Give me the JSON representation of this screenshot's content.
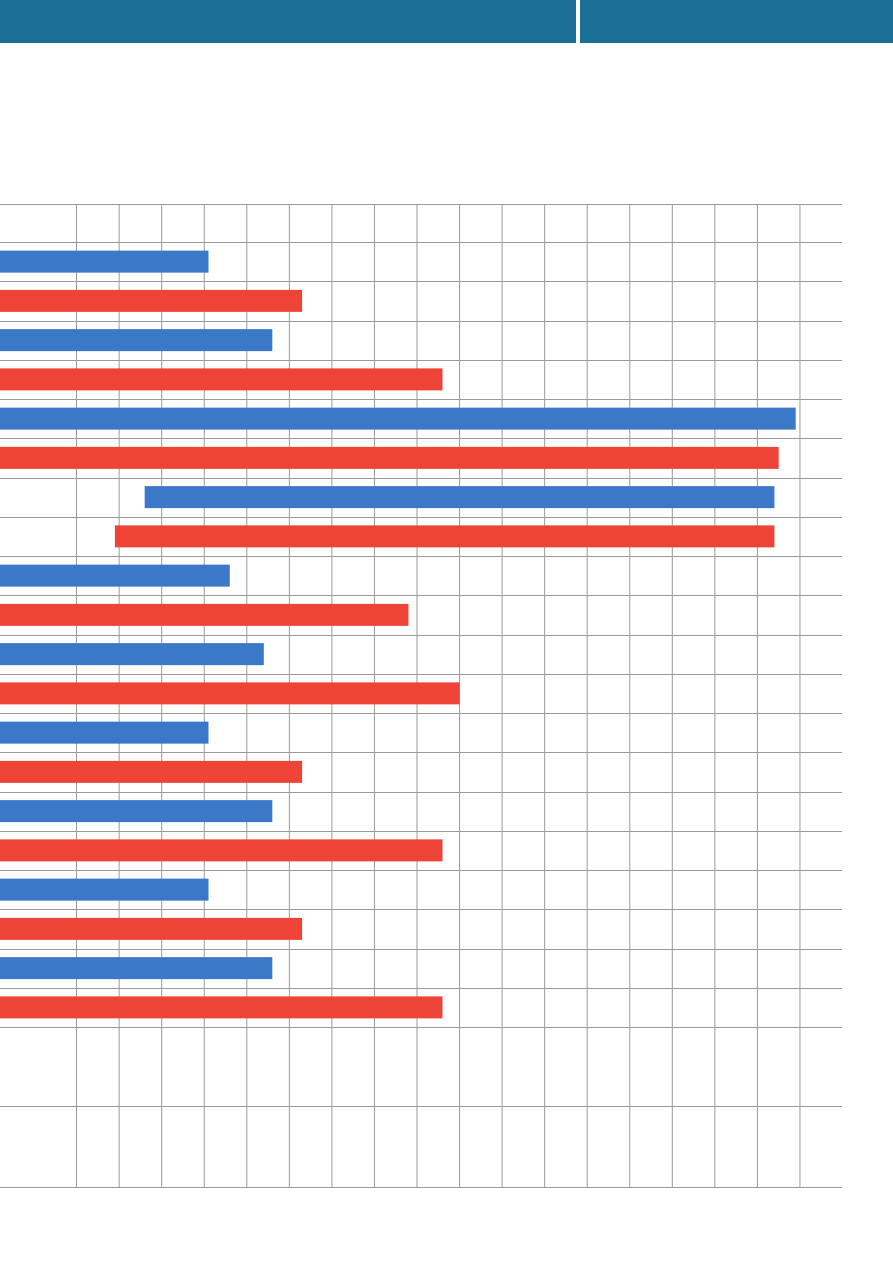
{
  "colors": {
    "header": "#1b6e96",
    "blue": "#3c78c8",
    "red": "#ee4438",
    "grid": "#9a9a9a"
  },
  "chart_data": {
    "type": "bar",
    "orientation": "horizontal-floating",
    "title": "",
    "xlabel": "",
    "ylabel": "",
    "xlim": [
      0,
      20
    ],
    "grid": true,
    "legend": "none",
    "categories": [
      "",
      "",
      "",
      "",
      "",
      "",
      "",
      "",
      "",
      "",
      "",
      "",
      "",
      "",
      "",
      "",
      "",
      "",
      "",
      ""
    ],
    "series": [
      {
        "color": "blue",
        "bars": [
          {
            "row": 0,
            "start": 0,
            "end": 4.9
          },
          {
            "row": 2,
            "start": 0,
            "end": 6.4
          },
          {
            "row": 4,
            "start": 0,
            "end": 18.7
          },
          {
            "row": 6,
            "start": 3.4,
            "end": 18.2
          },
          {
            "row": 8,
            "start": 0,
            "end": 5.4
          },
          {
            "row": 10,
            "start": 0,
            "end": 6.2
          },
          {
            "row": 12,
            "start": 0,
            "end": 4.9
          },
          {
            "row": 14,
            "start": 0,
            "end": 6.4
          },
          {
            "row": 16,
            "start": 0,
            "end": 4.9
          },
          {
            "row": 18,
            "start": 0,
            "end": 6.4
          }
        ]
      },
      {
        "color": "red",
        "bars": [
          {
            "row": 1,
            "start": 0,
            "end": 7.1
          },
          {
            "row": 3,
            "start": 0,
            "end": 10.4
          },
          {
            "row": 5,
            "start": 0,
            "end": 18.3
          },
          {
            "row": 7,
            "start": 2.7,
            "end": 18.2
          },
          {
            "row": 9,
            "start": 0,
            "end": 9.6
          },
          {
            "row": 11,
            "start": 0,
            "end": 10.8
          },
          {
            "row": 13,
            "start": 0,
            "end": 7.1
          },
          {
            "row": 15,
            "start": 0,
            "end": 10.4
          },
          {
            "row": 17,
            "start": 0,
            "end": 7.1
          },
          {
            "row": 19,
            "start": 0,
            "end": 10.4
          }
        ]
      }
    ]
  }
}
